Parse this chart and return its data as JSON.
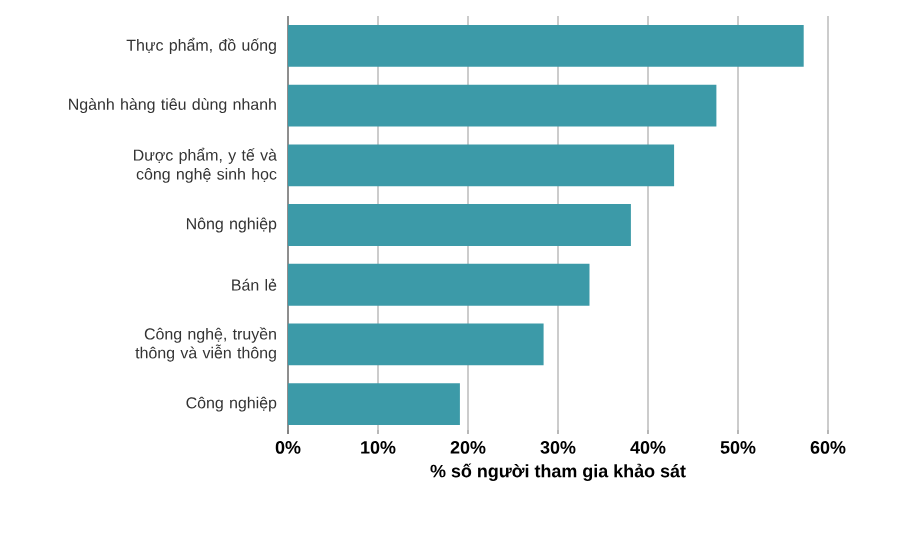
{
  "chart_data": {
    "type": "bar",
    "orientation": "horizontal",
    "categories": [
      "Thực phẩm, đồ uống",
      "Ngành hàng tiêu dùng nhanh",
      "Dược phẩm, y tế và công nghệ sinh học",
      "Nông nghiệp",
      "Bán lẻ",
      "Công nghệ, truyền thông và viễn thông",
      "Công nghiệp"
    ],
    "values": [
      57.3,
      47.6,
      42.9,
      38.1,
      33.5,
      28.4,
      19.1
    ],
    "color": "#3c9aa8",
    "xlim": [
      0,
      60
    ],
    "xticks": [
      {
        "value": 0,
        "label": "0%"
      },
      {
        "value": 10,
        "label": "10%"
      },
      {
        "value": 20,
        "label": "20%"
      },
      {
        "value": 30,
        "label": "30%"
      },
      {
        "value": 40,
        "label": "40%"
      },
      {
        "value": 50,
        "label": "50%"
      },
      {
        "value": 60,
        "label": "60%"
      }
    ],
    "xlabel": "% số người tham gia khảo sát",
    "grid": "x"
  }
}
